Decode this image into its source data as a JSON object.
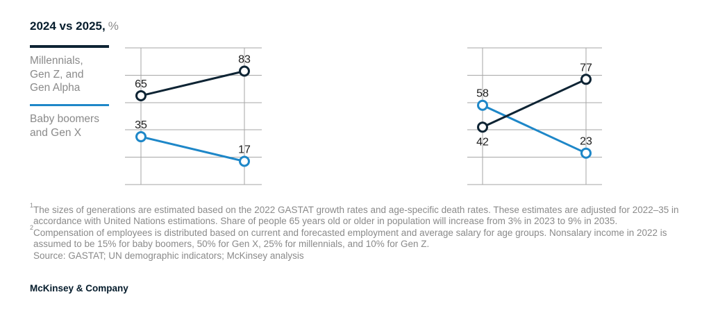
{
  "title": {
    "main": "2024 vs 2025,",
    "unit": "%"
  },
  "legend": {
    "items": [
      {
        "lines": [
          "Millennials,",
          "Gen Z, and",
          "Gen Alpha"
        ],
        "color": "#0e2434"
      },
      {
        "lines": [
          "Baby boomers",
          "and Gen X"
        ],
        "color": "#1e87c8"
      }
    ]
  },
  "chart_data": [
    {
      "type": "line",
      "variant": "slope",
      "categories": [
        "2024",
        "2025"
      ],
      "series": [
        {
          "name": "Millennials, Gen Z, and Gen Alpha",
          "color": "#0e2434",
          "values": [
            65,
            83
          ],
          "label_positions": [
            "above",
            "above"
          ]
        },
        {
          "name": "Baby boomers and Gen X",
          "color": "#1e87c8",
          "values": [
            35,
            17
          ],
          "label_positions": [
            "above",
            "above"
          ]
        }
      ],
      "ylim": [
        0,
        100
      ],
      "grid_step": 20,
      "grid": true,
      "legend_position": "left",
      "title": "",
      "xlabel": "",
      "ylabel": ""
    },
    {
      "type": "line",
      "variant": "slope",
      "categories": [
        "2024",
        "2025"
      ],
      "series": [
        {
          "name": "Millennials, Gen Z, and Gen Alpha",
          "color": "#0e2434",
          "values": [
            42,
            77
          ],
          "label_positions": [
            "below",
            "above"
          ]
        },
        {
          "name": "Baby boomers and Gen X",
          "color": "#1e87c8",
          "values": [
            58,
            23
          ],
          "label_positions": [
            "above",
            "above"
          ]
        }
      ],
      "ylim": [
        0,
        100
      ],
      "grid_step": 20,
      "grid": true,
      "legend_position": "none",
      "title": "",
      "xlabel": "",
      "ylabel": ""
    }
  ],
  "colors": {
    "grid": "#a6a6a6",
    "marker_fill": "#ffffff",
    "label": "#1b1b1b"
  },
  "footnotes": {
    "note1": {
      "sup": "1",
      "lines": [
        "The sizes of generations are estimated based on the 2022 GASTAT growth rates and age-specific death rates. These estimates are adjusted for 2022–35 in",
        "accordance with United Nations estimations. Share of people 65 years old or older in population will increase from 3% in 2023 to 9% in 2035."
      ]
    },
    "note2": {
      "sup": "2",
      "lines": [
        "Compensation of employees is distributed based on current and forecasted employment and average salary for age groups. Nonsalary income in 2022 is",
        "assumed to be 15% for baby boomers, 50% for Gen X, 25% for millennials, and 10% for Gen Z."
      ]
    },
    "source": "Source: GASTAT; UN demographic indicators; McKinsey analysis"
  },
  "footer": {
    "brand": "McKinsey & Company"
  }
}
